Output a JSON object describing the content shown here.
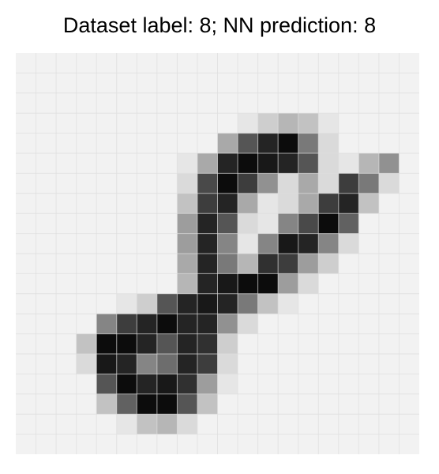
{
  "title": "Dataset label: 8; NN prediction: 8",
  "chart_data": {
    "type": "heatmap",
    "title": "Dataset label: 8; NN prediction: 8",
    "xlabel": "",
    "ylabel": "",
    "grid": true,
    "colormap": "gray_r",
    "value_range": [
      0,
      1
    ],
    "rows": 20,
    "cols": 20,
    "values": [
      [
        0,
        0,
        0,
        0,
        0,
        0,
        0,
        0,
        0,
        0,
        0,
        0,
        0,
        0,
        0,
        0,
        0,
        0,
        0,
        0
      ],
      [
        0,
        0,
        0,
        0,
        0,
        0,
        0,
        0,
        0,
        0,
        0,
        0,
        0,
        0,
        0,
        0,
        0,
        0,
        0,
        0
      ],
      [
        0,
        0,
        0,
        0,
        0,
        0,
        0,
        0,
        0,
        0,
        0,
        0,
        0,
        0,
        0,
        0,
        0,
        0,
        0,
        0
      ],
      [
        0,
        0,
        0,
        0,
        0,
        0,
        0,
        0,
        0,
        0,
        0,
        0.05,
        0.15,
        0.25,
        0.2,
        0.05,
        0,
        0,
        0,
        0
      ],
      [
        0,
        0,
        0,
        0,
        0,
        0,
        0,
        0,
        0,
        0,
        0.3,
        0.65,
        0.85,
        0.95,
        0.5,
        0.1,
        0,
        0,
        0,
        0
      ],
      [
        0,
        0,
        0,
        0,
        0,
        0,
        0,
        0,
        0.05,
        0.3,
        0.85,
        0.95,
        0.9,
        0.85,
        0.65,
        0.1,
        0.05,
        0.25,
        0.4,
        0
      ],
      [
        0,
        0,
        0,
        0,
        0,
        0,
        0,
        0,
        0.1,
        0.7,
        0.95,
        0.75,
        0.4,
        0.1,
        0.3,
        0.1,
        0.75,
        0.5,
        0.1,
        0
      ],
      [
        0,
        0,
        0,
        0,
        0,
        0,
        0,
        0,
        0.2,
        0.75,
        0.85,
        0.3,
        0.05,
        0.1,
        0.3,
        0.75,
        0.85,
        0.2,
        0,
        0
      ],
      [
        0,
        0,
        0,
        0,
        0,
        0,
        0,
        0,
        0.35,
        0.85,
        0.65,
        0.1,
        0.05,
        0.45,
        0.7,
        0.95,
        0.6,
        0,
        0,
        0
      ],
      [
        0,
        0,
        0,
        0,
        0,
        0,
        0,
        0,
        0.35,
        0.85,
        0.45,
        0.05,
        0.45,
        0.9,
        0.85,
        0.45,
        0.1,
        0,
        0,
        0
      ],
      [
        0,
        0,
        0,
        0,
        0,
        0,
        0,
        0,
        0.3,
        0.85,
        0.5,
        0.25,
        0.8,
        0.75,
        0.35,
        0.15,
        0,
        0,
        0,
        0
      ],
      [
        0,
        0,
        0,
        0,
        0,
        0,
        0,
        0,
        0.25,
        0.85,
        0.9,
        0.95,
        0.95,
        0.35,
        0.1,
        0,
        0,
        0,
        0,
        0
      ],
      [
        0,
        0,
        0,
        0,
        0,
        0.05,
        0.15,
        0.65,
        0.85,
        0.9,
        0.85,
        0.5,
        0.2,
        0.05,
        0,
        0,
        0,
        0,
        0,
        0
      ],
      [
        0,
        0,
        0,
        0,
        0.45,
        0.75,
        0.85,
        0.95,
        0.85,
        0.85,
        0.4,
        0.1,
        0,
        0,
        0,
        0,
        0,
        0,
        0,
        0
      ],
      [
        0,
        0,
        0,
        0.2,
        0.95,
        0.95,
        0.85,
        0.65,
        0.85,
        0.8,
        0.15,
        0,
        0,
        0,
        0,
        0,
        0,
        0,
        0,
        0
      ],
      [
        0,
        0,
        0,
        0.1,
        0.9,
        0.85,
        0.45,
        0.55,
        0.85,
        0.75,
        0.1,
        0,
        0,
        0,
        0,
        0,
        0,
        0,
        0,
        0
      ],
      [
        0,
        0,
        0,
        0,
        0.65,
        0.95,
        0.85,
        0.9,
        0.8,
        0.35,
        0.05,
        0,
        0,
        0,
        0,
        0,
        0,
        0,
        0,
        0
      ],
      [
        0,
        0,
        0,
        0,
        0.2,
        0.6,
        0.95,
        0.95,
        0.65,
        0.2,
        0,
        0,
        0,
        0,
        0,
        0,
        0,
        0,
        0,
        0
      ],
      [
        0,
        0,
        0,
        0,
        0,
        0.05,
        0.2,
        0.25,
        0.1,
        0,
        0,
        0,
        0,
        0,
        0,
        0,
        0,
        0,
        0,
        0
      ],
      [
        0,
        0,
        0,
        0,
        0,
        0,
        0,
        0,
        0,
        0,
        0,
        0,
        0,
        0,
        0,
        0,
        0,
        0,
        0,
        0
      ]
    ]
  }
}
